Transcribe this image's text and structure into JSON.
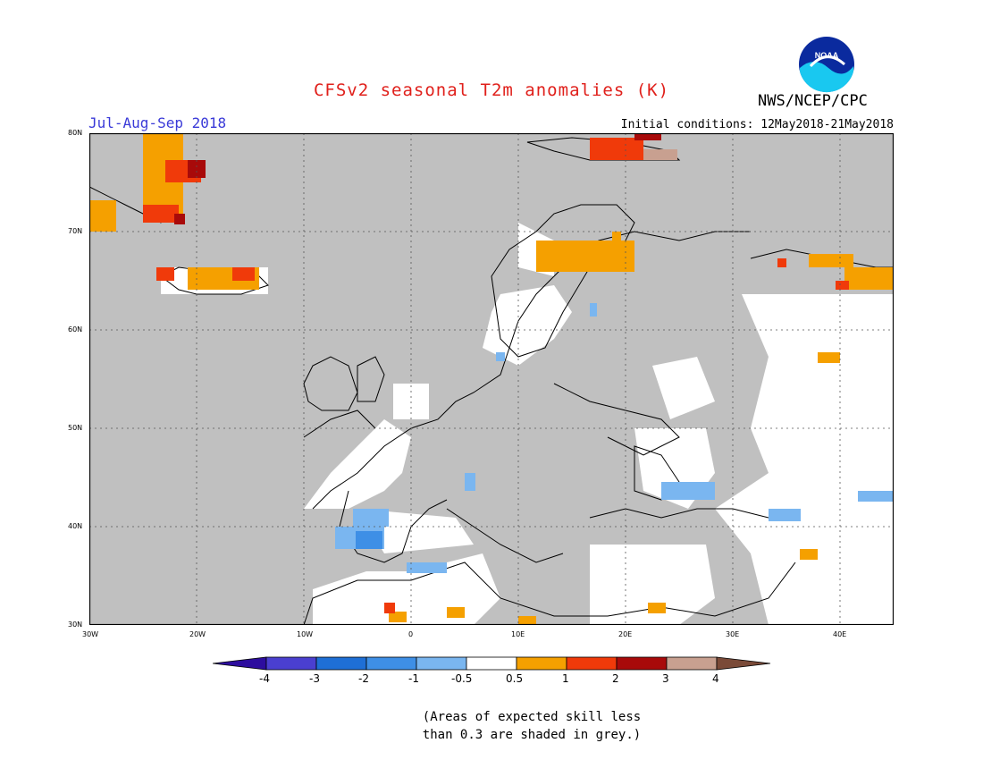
{
  "header": {
    "title": "CFSv2 seasonal T2m anomalies (K)",
    "period": "Jul-Aug-Sep 2018",
    "agency": "NWS/NCEP/CPC",
    "logo_text": "NOAA",
    "initial_conditions": "Initial conditions: 12May2018-21May2018"
  },
  "colors": {
    "title": "#e0201b",
    "period": "#3a3ad8",
    "grey_mask": "#c0c0c0",
    "land_outline": "#000000",
    "grid": "#555555"
  },
  "map": {
    "lat_ticks": [
      "30N",
      "40N",
      "50N",
      "60N",
      "70N",
      "80N"
    ],
    "lon_ticks": [
      "30W",
      "20W",
      "10W",
      "0",
      "10E",
      "20E",
      "30E",
      "40E"
    ],
    "extent": {
      "lon_min": -30,
      "lon_max": 45,
      "lat_min": 30,
      "lat_max": 80
    }
  },
  "colorbar": {
    "labels": [
      "-4",
      "-3",
      "-2",
      "-1",
      "-0.5",
      "0.5",
      "1",
      "2",
      "3",
      "4"
    ],
    "bins": [
      {
        "color": "#2d0d9e"
      },
      {
        "color": "#4a3fd0"
      },
      {
        "color": "#1e6fd6"
      },
      {
        "color": "#3e8fe6"
      },
      {
        "color": "#7ab6f0"
      },
      {
        "color": "#ffffff"
      },
      {
        "color": "#f5a000"
      },
      {
        "color": "#f03a0a"
      },
      {
        "color": "#a80a0a"
      },
      {
        "color": "#c8a090"
      },
      {
        "color": "#7a4a38"
      }
    ]
  },
  "footnote": {
    "line1": "(Areas of expected skill less",
    "line2": "than 0.3 are shaded in grey.)"
  }
}
